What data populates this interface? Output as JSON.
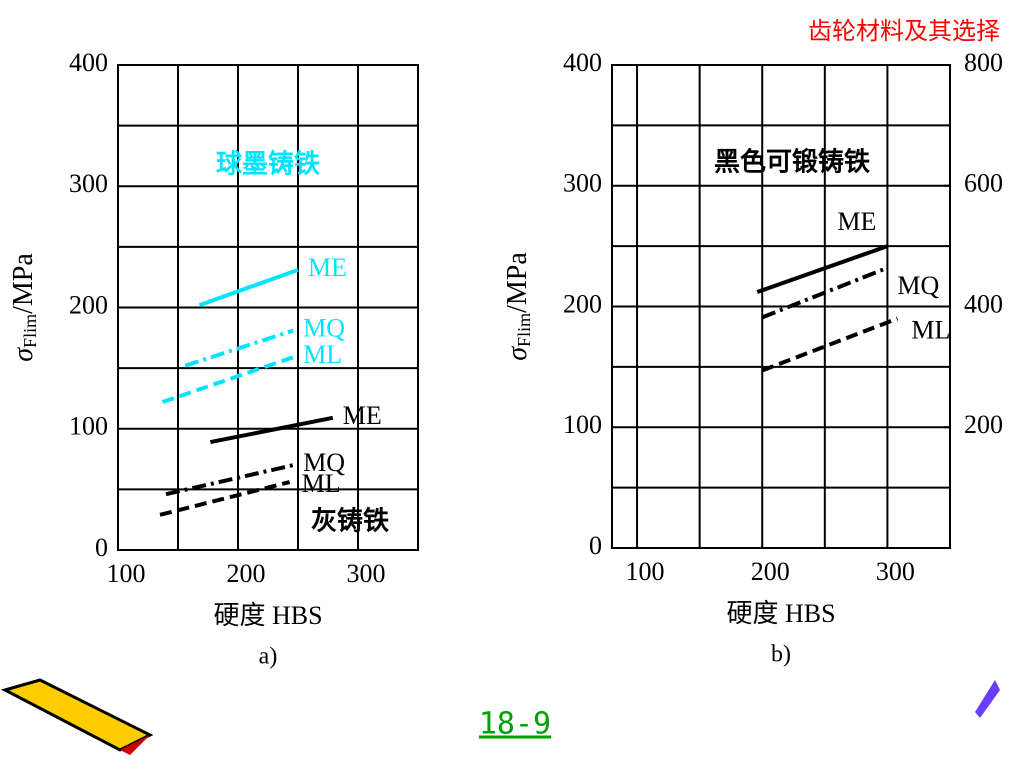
{
  "header": {
    "title": "齿轮材料及其选择"
  },
  "footer": {
    "page": "18-9"
  },
  "chart_data": [
    {
      "type": "line",
      "caption": "a)",
      "x_label": "硬度 HBS",
      "y_label": [
        "σ",
        "Flim",
        "/MPa"
      ],
      "xlim": [
        100,
        350
      ],
      "xticks": [
        100,
        200,
        300
      ],
      "ylim": [
        0,
        400
      ],
      "yticks": [
        0,
        100,
        200,
        300,
        400
      ],
      "grid": true,
      "annotations": [
        {
          "text": "球墨铸铁",
          "color": "#00e5ff"
        },
        {
          "text": "灰铸铁",
          "color": "#000000"
        }
      ],
      "series": [
        {
          "name": "ME",
          "color": "#00e5ff",
          "style": "solid",
          "x": [
            168,
            250
          ],
          "values": [
            202,
            231
          ]
        },
        {
          "name": "MQ",
          "color": "#00e5ff",
          "style": "dashdot",
          "x": [
            156,
            246
          ],
          "values": [
            152,
            181
          ]
        },
        {
          "name": "ML",
          "color": "#00e5ff",
          "style": "dashed",
          "x": [
            137,
            246
          ],
          "values": [
            122,
            159
          ]
        },
        {
          "name": "ME",
          "color": "#000000",
          "style": "solid",
          "x": [
            177,
            279
          ],
          "values": [
            89,
            109
          ]
        },
        {
          "name": "MQ",
          "color": "#000000",
          "style": "dashdot",
          "x": [
            140,
            246
          ],
          "values": [
            46,
            70
          ]
        },
        {
          "name": "ML",
          "color": "#000000",
          "style": "dashed",
          "x": [
            135,
            243
          ],
          "values": [
            29,
            56
          ]
        }
      ]
    },
    {
      "type": "line",
      "caption": "b)",
      "x_label": "硬度 HBS",
      "y_label": [
        "σ",
        "Flim",
        "/MPa"
      ],
      "xlim": [
        80,
        350
      ],
      "xticks": [
        100,
        200,
        300
      ],
      "ylim": [
        0,
        400
      ],
      "yticks": [
        0,
        100,
        200,
        300,
        400
      ],
      "y2lim": [
        0,
        800
      ],
      "y2ticks": [
        200,
        400,
        600,
        800
      ],
      "grid": true,
      "annotations": [
        {
          "text": "黑色可锻铸铁",
          "color": "#000000"
        }
      ],
      "series": [
        {
          "name": "ME",
          "color": "#000000",
          "style": "solid",
          "x": [
            196,
            300
          ],
          "values": [
            212,
            250
          ]
        },
        {
          "name": "MQ",
          "color": "#000000",
          "style": "dashdot",
          "x": [
            200,
            300
          ],
          "values": [
            191,
            232
          ]
        },
        {
          "name": "ML",
          "color": "#000000",
          "style": "dashed",
          "x": [
            200,
            308
          ],
          "values": [
            147,
            190
          ]
        }
      ]
    }
  ]
}
